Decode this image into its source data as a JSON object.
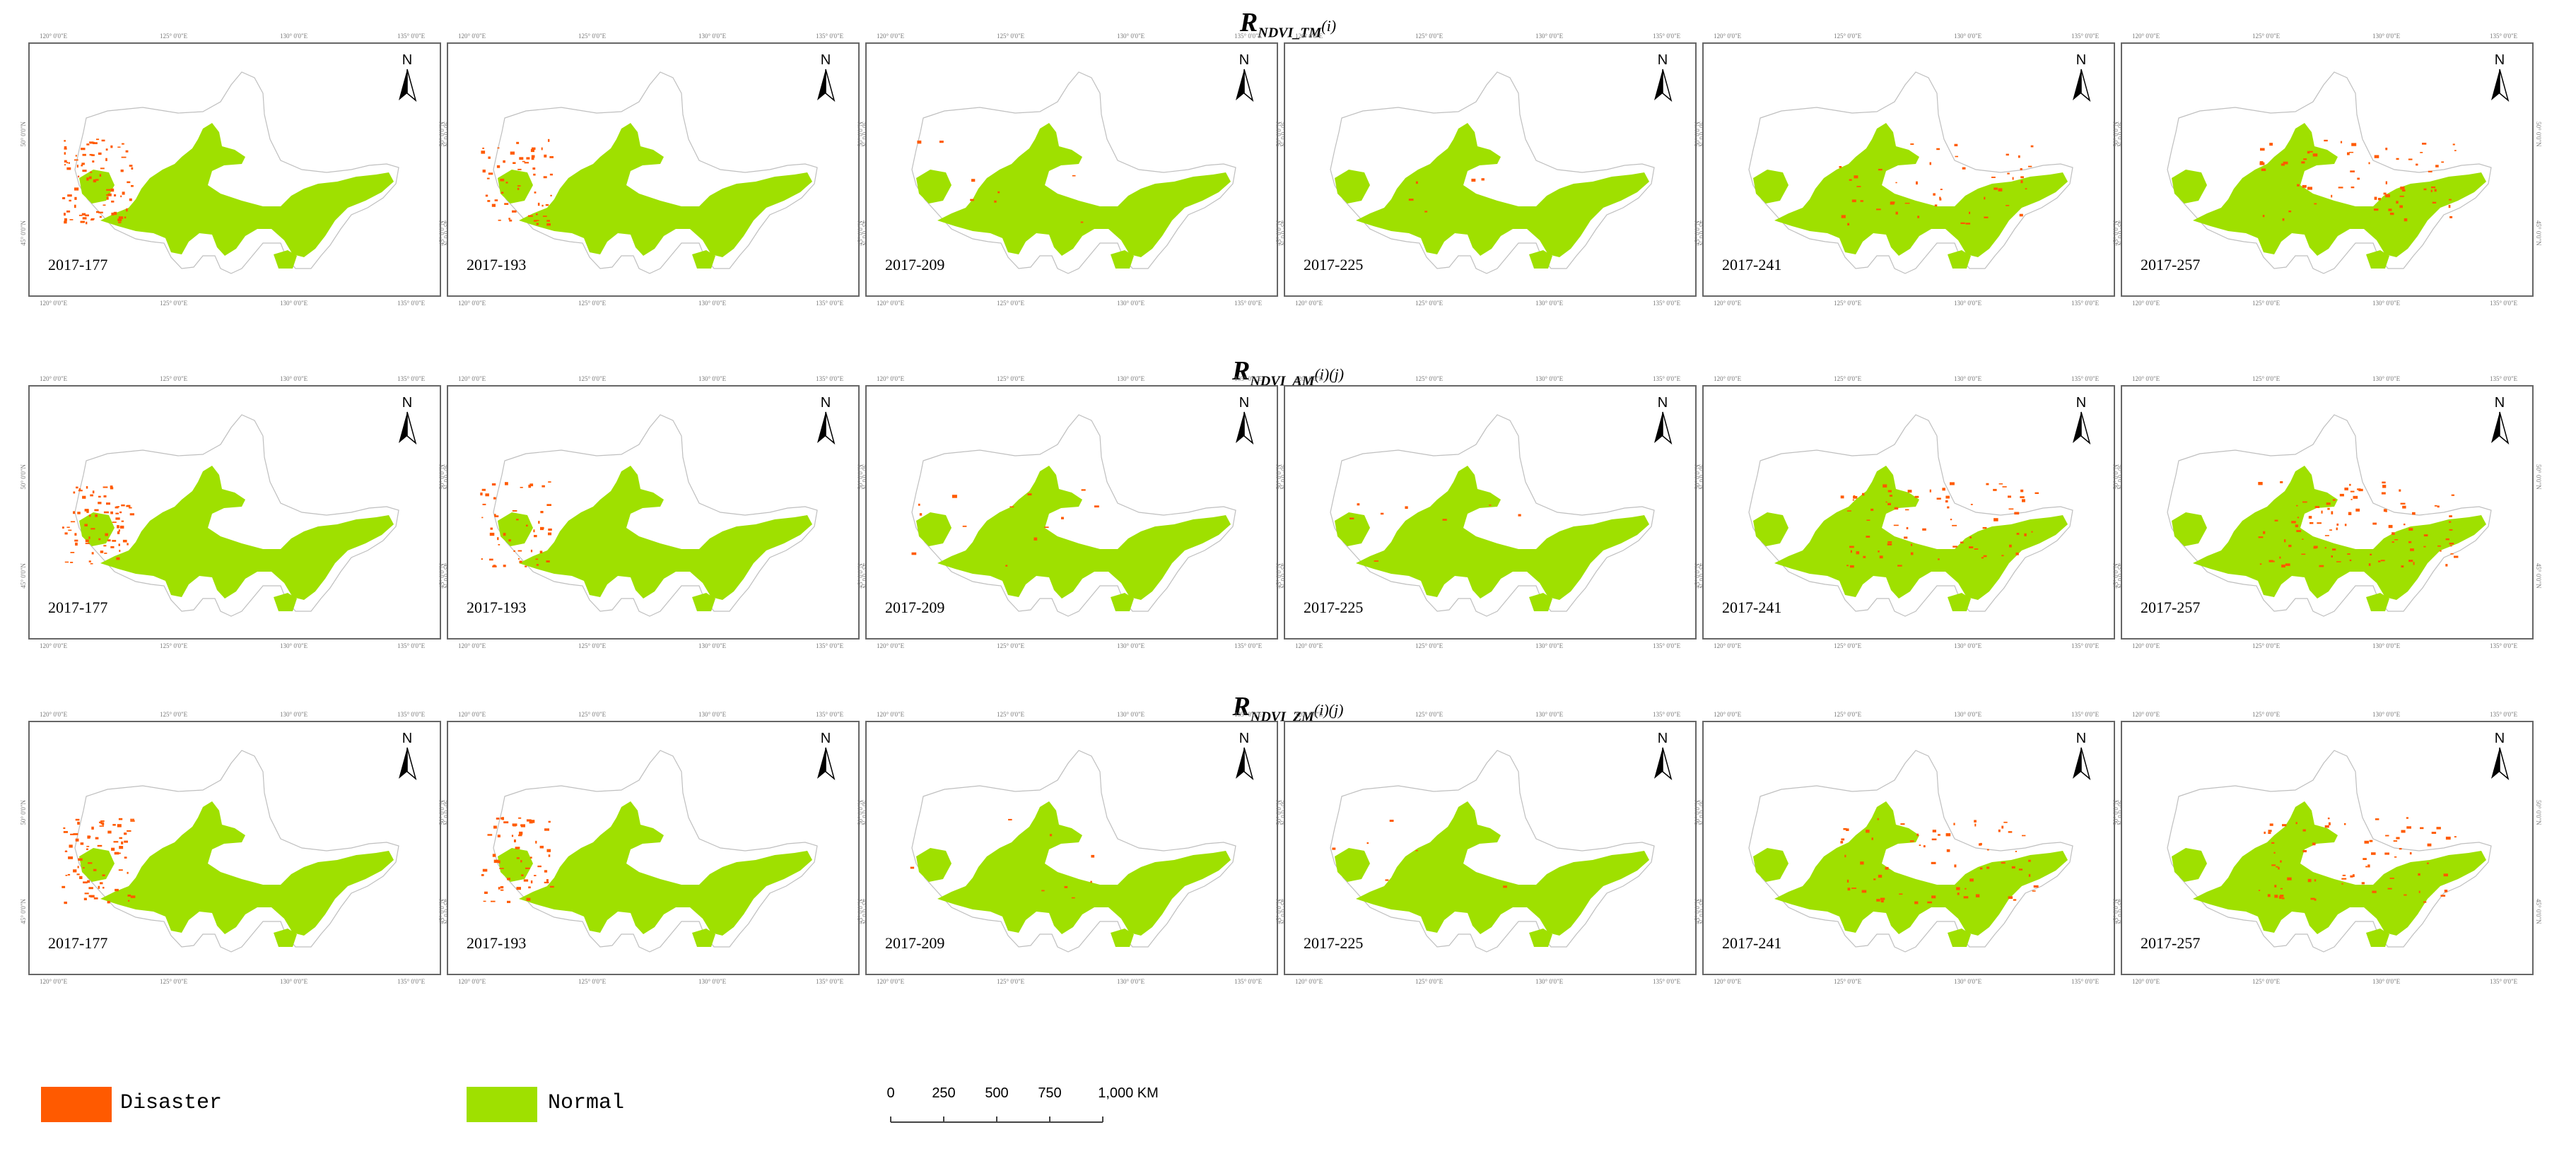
{
  "colors": {
    "disaster": "#ff5a00",
    "normal": "#9fe000",
    "outline": "#bfbfbf",
    "frame": "#666666"
  },
  "row_titles": [
    {
      "main": "R",
      "sub": "NDVI_TM",
      "idx": "(i)"
    },
    {
      "main": "R",
      "sub": "NDVI_AM",
      "idx": "(i)(j)"
    },
    {
      "main": "R",
      "sub": "NDVI_ZM",
      "idx": "(i)(j)"
    }
  ],
  "panel_labels": [
    "2017-177",
    "2017-193",
    "2017-209",
    "2017-225",
    "2017-241",
    "2017-257"
  ],
  "disaster_level": [
    [
      0.55,
      0.35,
      0.05,
      0.03,
      0.3,
      0.4
    ],
    [
      0.45,
      0.3,
      0.08,
      0.05,
      0.45,
      0.6
    ],
    [
      0.45,
      0.35,
      0.05,
      0.04,
      0.4,
      0.45
    ]
  ],
  "coord_ticks": {
    "top": [
      "120° 0'0\"E",
      "125° 0'0\"E",
      "130° 0'0\"E",
      "135° 0'0\"E"
    ],
    "side": [
      "50° 0'0\"N",
      "45° 0'0\"N"
    ]
  },
  "north_arrow": "N",
  "legend": {
    "disaster_label": "Disaster",
    "normal_label": "Normal"
  },
  "scalebar": {
    "ticks": [
      "0",
      "250",
      "500",
      "750",
      "1,000 KM"
    ]
  }
}
